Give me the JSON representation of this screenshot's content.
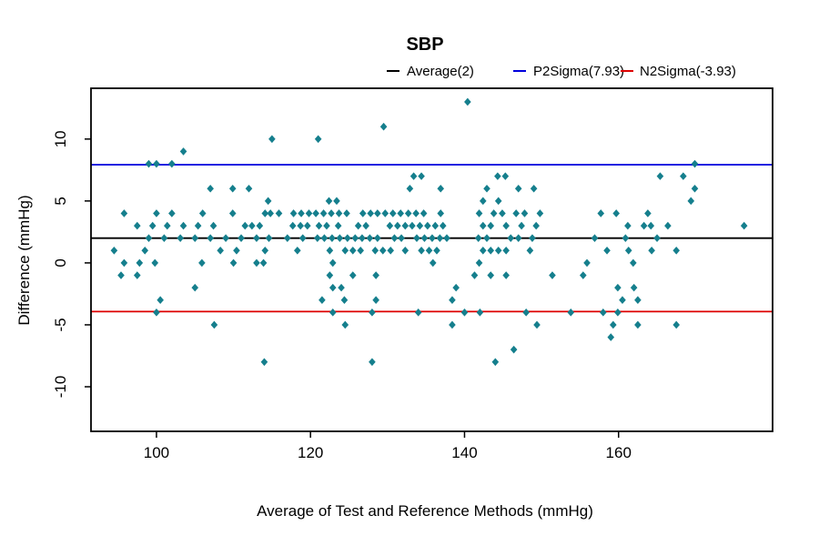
{
  "title": "SBP",
  "legend": {
    "items": [
      {
        "name": "average-line",
        "label": "Average(2)",
        "color": "#000000"
      },
      {
        "name": "p2sigma-line",
        "label": "P2Sigma(7.93)",
        "color": "#0000dd"
      },
      {
        "name": "n2sigma-line",
        "label": "N2Sigma(-3.93)",
        "color": "#dd0000"
      }
    ]
  },
  "axes": {
    "x_label": "Average of Test and Reference Methods (mmHg)",
    "y_label": "Difference (mmHg)",
    "x_ticks": [
      100,
      120,
      140,
      160
    ],
    "y_ticks": [
      -10,
      -5,
      0,
      5,
      10
    ]
  },
  "chart_data": {
    "type": "scatter",
    "title": "SBP",
    "xlabel": "Average of Test and Reference Methods (mmHg)",
    "ylabel": "Difference (mmHg)",
    "xlim": [
      91.5,
      180.0
    ],
    "ylim": [
      -13.6,
      14.1
    ],
    "x_ticks": [
      100,
      120,
      140,
      160
    ],
    "y_ticks": [
      -10,
      -5,
      0,
      5,
      10
    ],
    "grid": false,
    "legend_position": "top",
    "marker": {
      "shape": "diamond",
      "color": "#157f8d",
      "half_width": 3.8,
      "half_height": 4.3
    },
    "reference_lines": [
      {
        "name": "Average",
        "value": 2.0,
        "color": "#000000",
        "label": "Average(2)"
      },
      {
        "name": "P2Sigma",
        "value": 7.93,
        "color": "#0000dd",
        "label": "P2Sigma(7.93)"
      },
      {
        "name": "N2Sigma",
        "value": -3.93,
        "color": "#dd0000",
        "label": "N2Sigma(-3.93)"
      }
    ],
    "points": [
      [
        140.4,
        13
      ],
      [
        129.5,
        11
      ],
      [
        115.0,
        10
      ],
      [
        121.0,
        10
      ],
      [
        103.5,
        9
      ],
      [
        99.0,
        8
      ],
      [
        100.0,
        8
      ],
      [
        102.0,
        8
      ],
      [
        169.9,
        8
      ],
      [
        133.4,
        7
      ],
      [
        134.4,
        7
      ],
      [
        144.3,
        7
      ],
      [
        145.3,
        7
      ],
      [
        165.4,
        7
      ],
      [
        168.4,
        7
      ],
      [
        107.0,
        6
      ],
      [
        109.9,
        6
      ],
      [
        112.0,
        6
      ],
      [
        132.9,
        6
      ],
      [
        136.9,
        6
      ],
      [
        142.9,
        6
      ],
      [
        147.0,
        6
      ],
      [
        149.0,
        6
      ],
      [
        169.9,
        6
      ],
      [
        114.5,
        5
      ],
      [
        122.4,
        5
      ],
      [
        123.4,
        5
      ],
      [
        142.4,
        5
      ],
      [
        144.4,
        5
      ],
      [
        169.4,
        5
      ],
      [
        95.8,
        4
      ],
      [
        100.0,
        4
      ],
      [
        102.0,
        4
      ],
      [
        106.0,
        4
      ],
      [
        109.9,
        4
      ],
      [
        114.1,
        4
      ],
      [
        114.8,
        4
      ],
      [
        115.9,
        4
      ],
      [
        117.8,
        4
      ],
      [
        118.8,
        4
      ],
      [
        119.8,
        4
      ],
      [
        120.7,
        4
      ],
      [
        121.7,
        4
      ],
      [
        122.7,
        4
      ],
      [
        123.7,
        4
      ],
      [
        124.7,
        4
      ],
      [
        126.8,
        4
      ],
      [
        127.8,
        4
      ],
      [
        128.7,
        4
      ],
      [
        129.7,
        4
      ],
      [
        130.7,
        4
      ],
      [
        131.7,
        4
      ],
      [
        132.7,
        4
      ],
      [
        133.7,
        4
      ],
      [
        134.7,
        4
      ],
      [
        136.9,
        4
      ],
      [
        141.9,
        4
      ],
      [
        143.8,
        4
      ],
      [
        144.9,
        4
      ],
      [
        146.7,
        4
      ],
      [
        147.8,
        4
      ],
      [
        149.8,
        4
      ],
      [
        157.7,
        4
      ],
      [
        159.7,
        4
      ],
      [
        163.8,
        4
      ],
      [
        97.5,
        3
      ],
      [
        99.5,
        3
      ],
      [
        101.4,
        3
      ],
      [
        103.5,
        3
      ],
      [
        105.4,
        3
      ],
      [
        107.4,
        3
      ],
      [
        111.5,
        3
      ],
      [
        112.4,
        3
      ],
      [
        113.4,
        3
      ],
      [
        117.7,
        3
      ],
      [
        118.7,
        3
      ],
      [
        119.6,
        3
      ],
      [
        121.1,
        3
      ],
      [
        122.1,
        3
      ],
      [
        123.6,
        3
      ],
      [
        126.2,
        3
      ],
      [
        127.2,
        3
      ],
      [
        130.3,
        3
      ],
      [
        131.3,
        3
      ],
      [
        132.3,
        3
      ],
      [
        133.2,
        3
      ],
      [
        134.2,
        3
      ],
      [
        135.2,
        3
      ],
      [
        136.2,
        3
      ],
      [
        137.2,
        3
      ],
      [
        142.4,
        3
      ],
      [
        143.4,
        3
      ],
      [
        145.4,
        3
      ],
      [
        147.4,
        3
      ],
      [
        149.3,
        3
      ],
      [
        161.2,
        3
      ],
      [
        163.3,
        3
      ],
      [
        164.2,
        3
      ],
      [
        166.4,
        3
      ],
      [
        176.3,
        3
      ],
      [
        99.0,
        2
      ],
      [
        101.0,
        2
      ],
      [
        103.1,
        2
      ],
      [
        105.0,
        2
      ],
      [
        107.0,
        2
      ],
      [
        109.0,
        2
      ],
      [
        111.0,
        2
      ],
      [
        113.0,
        2
      ],
      [
        114.6,
        2
      ],
      [
        117.0,
        2
      ],
      [
        119.0,
        2
      ],
      [
        120.9,
        2
      ],
      [
        121.8,
        2
      ],
      [
        122.8,
        2
      ],
      [
        123.8,
        2
      ],
      [
        124.8,
        2
      ],
      [
        125.8,
        2
      ],
      [
        126.7,
        2
      ],
      [
        127.7,
        2
      ],
      [
        128.7,
        2
      ],
      [
        130.9,
        2
      ],
      [
        131.8,
        2
      ],
      [
        133.8,
        2
      ],
      [
        134.8,
        2
      ],
      [
        135.8,
        2
      ],
      [
        136.8,
        2
      ],
      [
        137.7,
        2
      ],
      [
        141.8,
        2
      ],
      [
        142.9,
        2
      ],
      [
        146.0,
        2
      ],
      [
        147.0,
        2
      ],
      [
        148.8,
        2
      ],
      [
        156.9,
        2
      ],
      [
        160.9,
        2
      ],
      [
        165.0,
        2
      ],
      [
        94.5,
        1
      ],
      [
        98.5,
        1
      ],
      [
        108.3,
        1
      ],
      [
        110.4,
        1
      ],
      [
        114.1,
        1
      ],
      [
        118.3,
        1
      ],
      [
        122.5,
        1
      ],
      [
        124.5,
        1
      ],
      [
        125.5,
        1
      ],
      [
        126.5,
        1
      ],
      [
        128.4,
        1
      ],
      [
        129.4,
        1
      ],
      [
        130.4,
        1
      ],
      [
        132.3,
        1
      ],
      [
        134.4,
        1
      ],
      [
        135.4,
        1
      ],
      [
        136.4,
        1
      ],
      [
        142.4,
        1
      ],
      [
        143.4,
        1
      ],
      [
        144.4,
        1
      ],
      [
        145.4,
        1
      ],
      [
        148.5,
        1
      ],
      [
        158.5,
        1
      ],
      [
        161.3,
        1
      ],
      [
        164.3,
        1
      ],
      [
        167.5,
        1
      ],
      [
        95.8,
        0
      ],
      [
        97.8,
        0
      ],
      [
        99.8,
        0
      ],
      [
        105.9,
        0
      ],
      [
        110.0,
        0
      ],
      [
        113.0,
        0
      ],
      [
        113.9,
        0
      ],
      [
        122.9,
        0
      ],
      [
        135.9,
        0
      ],
      [
        141.9,
        0
      ],
      [
        155.9,
        0
      ],
      [
        161.9,
        0
      ],
      [
        95.4,
        -1
      ],
      [
        97.5,
        -1
      ],
      [
        122.5,
        -1
      ],
      [
        125.5,
        -1
      ],
      [
        128.5,
        -1
      ],
      [
        141.3,
        -1
      ],
      [
        143.4,
        -1
      ],
      [
        145.4,
        -1
      ],
      [
        151.4,
        -1
      ],
      [
        155.4,
        -1
      ],
      [
        105.0,
        -2
      ],
      [
        122.9,
        -2
      ],
      [
        124.0,
        -2
      ],
      [
        138.9,
        -2
      ],
      [
        159.9,
        -2
      ],
      [
        162.0,
        -2
      ],
      [
        100.5,
        -3
      ],
      [
        121.5,
        -3
      ],
      [
        124.4,
        -3
      ],
      [
        128.5,
        -3
      ],
      [
        138.4,
        -3
      ],
      [
        160.5,
        -3
      ],
      [
        162.5,
        -3
      ],
      [
        100.0,
        -4
      ],
      [
        122.9,
        -4
      ],
      [
        128.0,
        -4
      ],
      [
        134.0,
        -4
      ],
      [
        140.0,
        -4
      ],
      [
        142.0,
        -4
      ],
      [
        148.0,
        -4
      ],
      [
        153.8,
        -4
      ],
      [
        158.0,
        -4
      ],
      [
        159.9,
        -4
      ],
      [
        107.5,
        -5
      ],
      [
        124.5,
        -5
      ],
      [
        138.4,
        -5
      ],
      [
        149.4,
        -5
      ],
      [
        159.3,
        -5
      ],
      [
        162.5,
        -5
      ],
      [
        167.5,
        -5
      ],
      [
        159.0,
        -6
      ],
      [
        146.4,
        -7
      ],
      [
        114.0,
        -8
      ],
      [
        128.0,
        -8
      ],
      [
        144.0,
        -8
      ]
    ]
  }
}
